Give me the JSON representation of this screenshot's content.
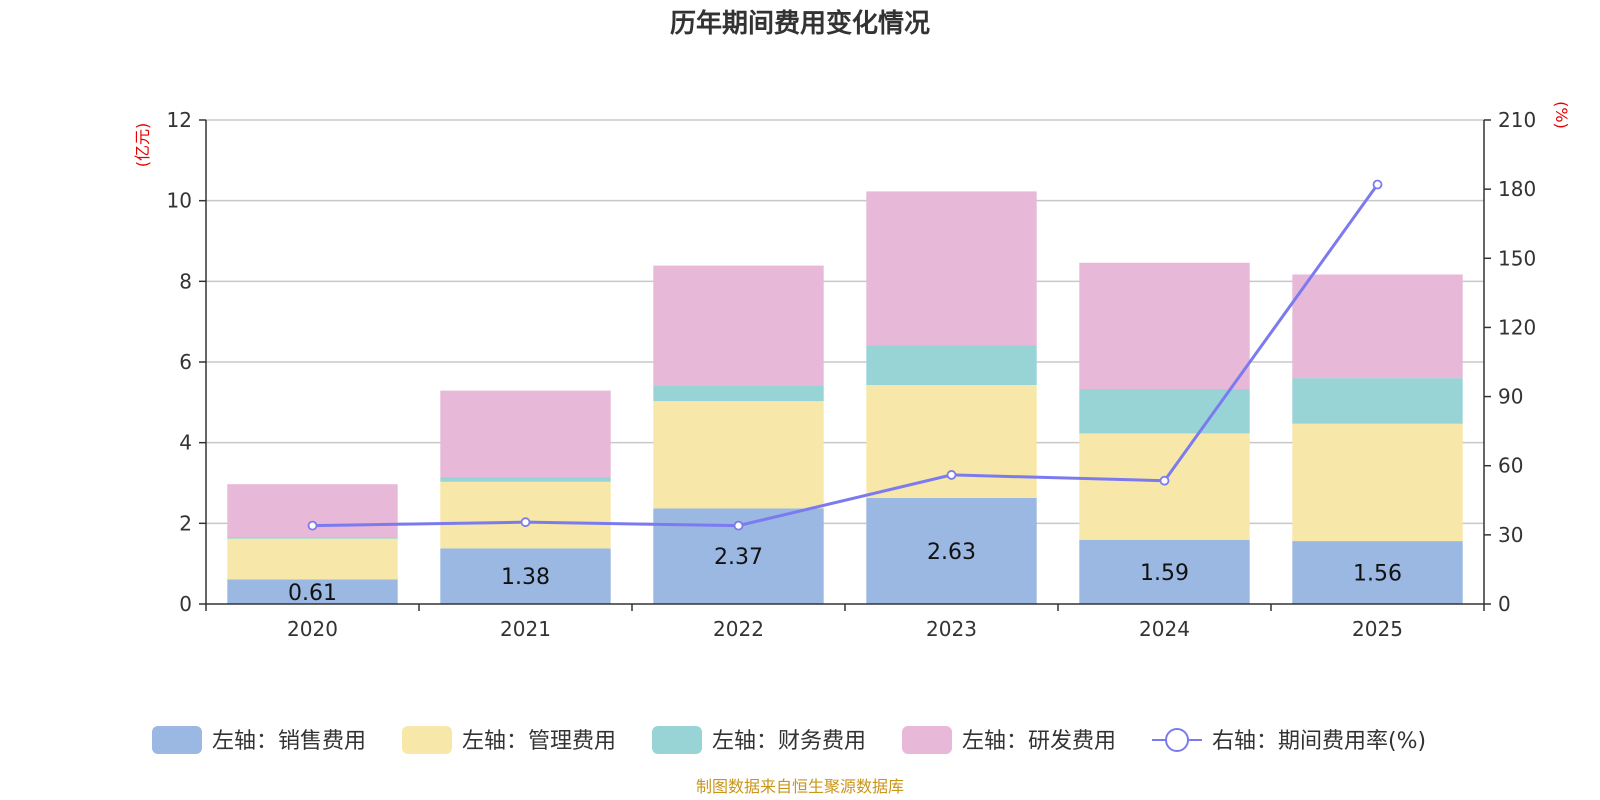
{
  "chart_data": {
    "type": "bar",
    "stacked": true,
    "title": "历年期间费用变化情况",
    "categories": [
      "2020",
      "2021",
      "2022",
      "2023",
      "2024",
      "2025"
    ],
    "series": [
      {
        "name": "左轴：销售费用",
        "axis": "left",
        "color": "#9bb8e2",
        "values": [
          0.61,
          1.38,
          2.37,
          2.63,
          1.59,
          1.56
        ],
        "show_labels": true
      },
      {
        "name": "左轴：管理费用",
        "axis": "left",
        "color": "#f7e7a8",
        "values": [
          1.01,
          1.65,
          2.66,
          2.8,
          2.64,
          2.91
        ],
        "show_labels": false
      },
      {
        "name": "左轴：财务费用",
        "axis": "left",
        "color": "#98d4d5",
        "values": [
          0.04,
          0.12,
          0.39,
          0.98,
          1.1,
          1.13
        ],
        "show_labels": false
      },
      {
        "name": "左轴：研发费用",
        "axis": "left",
        "color": "#e8b8d9",
        "values": [
          1.31,
          2.14,
          2.97,
          3.82,
          3.13,
          2.57
        ],
        "show_labels": false
      }
    ],
    "line_series": {
      "name": "右轴：期间费用率(%)",
      "axis": "right",
      "color": "#7b7bef",
      "values": [
        34,
        35.5,
        34,
        56,
        53.5,
        182
      ]
    },
    "left_axis": {
      "unit": "(亿元)",
      "min": 0,
      "max": 12,
      "ticks": [
        0,
        2,
        4,
        6,
        8,
        10,
        12
      ]
    },
    "right_axis": {
      "unit": "(%)",
      "min": 0,
      "max": 210,
      "ticks": [
        0,
        30,
        60,
        90,
        120,
        150,
        180,
        210
      ]
    },
    "grid": true,
    "legend_position": "bottom",
    "source": "制图数据来自恒生聚源数据库"
  }
}
